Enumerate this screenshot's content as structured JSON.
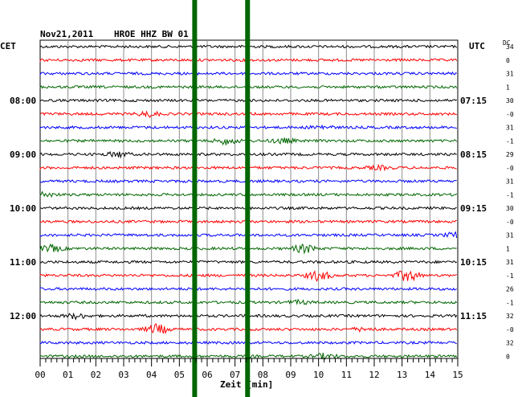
{
  "header": {
    "date": "Nov21,2011",
    "station": "HROE HHZ BW 01",
    "left_zone": "CET",
    "right_zone": "UTC",
    "dc_label": "DC"
  },
  "chart_data": {
    "type": "line",
    "title": "Nov21,2011   HROE HHZ BW 01",
    "xlabel": "Zeit [min]",
    "xlim": [
      0,
      15
    ],
    "x_ticks": [
      "00",
      "01",
      "02",
      "03",
      "04",
      "05",
      "06",
      "07",
      "08",
      "09",
      "10",
      "11",
      "12",
      "13",
      "14",
      "15"
    ],
    "grid": true,
    "trace_colors": [
      "#000000",
      "#ff0000",
      "#0000ff",
      "#006600"
    ],
    "left_time_labels": [
      {
        "row": 4,
        "text": "08:00"
      },
      {
        "row": 8,
        "text": "09:00"
      },
      {
        "row": 12,
        "text": "10:00"
      },
      {
        "row": 16,
        "text": "11:00"
      },
      {
        "row": 20,
        "text": "12:00"
      }
    ],
    "right_time_labels": [
      {
        "row": 4,
        "text": "07:15"
      },
      {
        "row": 8,
        "text": "08:15"
      },
      {
        "row": 12,
        "text": "09:15"
      },
      {
        "row": 16,
        "text": "10:15"
      },
      {
        "row": 20,
        "text": "11:15"
      }
    ],
    "dc_values": [
      "34",
      "0",
      "31",
      "1",
      "30",
      "-0",
      "31",
      "-1",
      "29",
      "-0",
      "31",
      "-1",
      "30",
      "-0",
      "31",
      "1",
      "31",
      "-1",
      "26",
      "-1",
      "32",
      "-0",
      "32",
      "0"
    ],
    "vertical_markers_min": [
      5.55,
      7.45
    ],
    "marker_color": "#006600",
    "events": [
      {
        "row": 5,
        "x": 3.9,
        "amp": 3
      },
      {
        "row": 6,
        "x": 10.1,
        "amp": 2
      },
      {
        "row": 7,
        "x": 6.7,
        "amp": 4
      },
      {
        "row": 7,
        "x": 8.7,
        "amp": 3
      },
      {
        "row": 8,
        "x": 2.8,
        "amp": 3
      },
      {
        "row": 9,
        "x": 12.2,
        "amp": 2
      },
      {
        "row": 11,
        "x": 0.1,
        "amp": 3
      },
      {
        "row": 14,
        "x": 15.0,
        "amp": 4
      },
      {
        "row": 15,
        "x": 0.4,
        "amp": 4
      },
      {
        "row": 15,
        "x": 9.5,
        "amp": 5
      },
      {
        "row": 17,
        "x": 10.0,
        "amp": 6
      },
      {
        "row": 17,
        "x": 13.2,
        "amp": 7
      },
      {
        "row": 19,
        "x": 9.3,
        "amp": 2
      },
      {
        "row": 20,
        "x": 1.3,
        "amp": 3
      },
      {
        "row": 21,
        "x": 4.2,
        "amp": 6
      },
      {
        "row": 21,
        "x": 11.6,
        "amp": 2
      },
      {
        "row": 23,
        "x": 10.2,
        "amp": 3
      }
    ]
  }
}
